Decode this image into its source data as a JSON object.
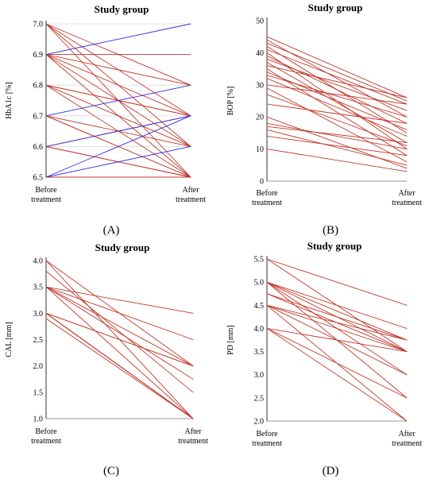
{
  "figure": {
    "panel_labels": [
      "(A)",
      "(B)",
      "(C)",
      "(D)"
    ]
  },
  "colors": {
    "red": "#c0392b",
    "blue": "#2e2ee0",
    "axis": "#333333",
    "grid": "#d9d9d9"
  },
  "chart_data": [
    {
      "type": "line",
      "panel": "(A)",
      "title": "Study group",
      "ylabel": "HbA1c [%]",
      "categories": [
        "Before treatment",
        "After treatment"
      ],
      "ylim": [
        6.5,
        7.0
      ],
      "yticks": [
        "6.5",
        "6.6",
        "6.7",
        "6.8",
        "6.9",
        "7.0"
      ],
      "ytick_values": [
        6.5,
        6.6,
        6.7,
        6.8,
        6.9,
        7.0
      ],
      "gridlines": true,
      "pairs": [
        {
          "before": 7.0,
          "after": 6.8,
          "color": "red"
        },
        {
          "before": 7.0,
          "after": 6.7,
          "color": "red"
        },
        {
          "before": 7.0,
          "after": 6.6,
          "color": "red"
        },
        {
          "before": 7.0,
          "after": 6.5,
          "color": "red"
        },
        {
          "before": 6.9,
          "after": 6.9,
          "color": "red"
        },
        {
          "before": 6.9,
          "after": 6.8,
          "color": "red"
        },
        {
          "before": 6.9,
          "after": 6.7,
          "color": "red"
        },
        {
          "before": 6.9,
          "after": 6.6,
          "color": "red"
        },
        {
          "before": 6.9,
          "after": 6.5,
          "color": "red"
        },
        {
          "before": 6.8,
          "after": 6.7,
          "color": "red"
        },
        {
          "before": 6.8,
          "after": 6.7,
          "color": "red"
        },
        {
          "before": 6.8,
          "after": 6.6,
          "color": "red"
        },
        {
          "before": 6.8,
          "after": 6.5,
          "color": "red"
        },
        {
          "before": 6.7,
          "after": 6.6,
          "color": "red"
        },
        {
          "before": 6.7,
          "after": 6.5,
          "color": "red"
        },
        {
          "before": 6.7,
          "after": 6.5,
          "color": "red"
        },
        {
          "before": 6.6,
          "after": 6.7,
          "color": "red"
        },
        {
          "before": 6.6,
          "after": 6.5,
          "color": "red"
        },
        {
          "before": 6.6,
          "after": 6.5,
          "color": "red"
        },
        {
          "before": 6.5,
          "after": 6.5,
          "color": "red"
        },
        {
          "before": 6.9,
          "after": 7.0,
          "color": "blue"
        },
        {
          "before": 6.7,
          "after": 6.8,
          "color": "blue"
        },
        {
          "before": 6.6,
          "after": 6.7,
          "color": "blue"
        },
        {
          "before": 6.5,
          "after": 6.7,
          "color": "blue"
        },
        {
          "before": 6.5,
          "after": 6.6,
          "color": "blue"
        }
      ]
    },
    {
      "type": "line",
      "panel": "(B)",
      "title": "Study group",
      "ylabel": "BOP [%]",
      "categories": [
        "Before treatment",
        "After treatment"
      ],
      "ylim": [
        0,
        50
      ],
      "yticks": [
        "0",
        "10",
        "20",
        "30",
        "40",
        "50"
      ],
      "ytick_values": [
        0,
        10,
        20,
        30,
        40,
        50
      ],
      "gridlines": false,
      "pairs": [
        {
          "before": 45,
          "after": 26,
          "color": "red"
        },
        {
          "before": 44,
          "after": 20,
          "color": "red"
        },
        {
          "before": 43,
          "after": 25,
          "color": "red"
        },
        {
          "before": 42,
          "after": 15,
          "color": "red"
        },
        {
          "before": 41,
          "after": 24,
          "color": "red"
        },
        {
          "before": 40,
          "after": 10,
          "color": "red"
        },
        {
          "before": 39,
          "after": 18,
          "color": "red"
        },
        {
          "before": 38,
          "after": 22,
          "color": "red"
        },
        {
          "before": 37,
          "after": 12,
          "color": "red"
        },
        {
          "before": 36,
          "after": 26,
          "color": "red"
        },
        {
          "before": 35,
          "after": 8,
          "color": "red"
        },
        {
          "before": 34,
          "after": 16,
          "color": "red"
        },
        {
          "before": 33,
          "after": 20,
          "color": "red"
        },
        {
          "before": 32,
          "after": 14,
          "color": "red"
        },
        {
          "before": 30,
          "after": 24,
          "color": "red"
        },
        {
          "before": 29,
          "after": 6,
          "color": "red"
        },
        {
          "before": 27,
          "after": 11,
          "color": "red"
        },
        {
          "before": 24,
          "after": 18,
          "color": "red"
        },
        {
          "before": 20,
          "after": 4,
          "color": "red"
        },
        {
          "before": 18,
          "after": 10,
          "color": "red"
        },
        {
          "before": 17,
          "after": 12,
          "color": "red"
        },
        {
          "before": 16,
          "after": 5,
          "color": "red"
        },
        {
          "before": 14,
          "after": 8,
          "color": "red"
        },
        {
          "before": 10,
          "after": 3,
          "color": "red"
        }
      ]
    },
    {
      "type": "line",
      "panel": "(C)",
      "title": "Study group",
      "ylabel": "CAL [mm]",
      "categories": [
        "Before treatment",
        "After treatment"
      ],
      "ylim": [
        1.0,
        4.0
      ],
      "yticks": [
        "1.0",
        "1.5",
        "2.0",
        "2.5",
        "3.0",
        "3.5",
        "4.0"
      ],
      "ytick_values": [
        1.0,
        1.5,
        2.0,
        2.5,
        3.0,
        3.5,
        4.0
      ],
      "gridlines": false,
      "pairs": [
        {
          "before": 4.0,
          "after": 2.0,
          "color": "red"
        },
        {
          "before": 4.0,
          "after": 1.0,
          "color": "red"
        },
        {
          "before": 3.8,
          "after": 1.5,
          "color": "red"
        },
        {
          "before": 3.5,
          "after": 3.0,
          "color": "red"
        },
        {
          "before": 3.5,
          "after": 2.5,
          "color": "red"
        },
        {
          "before": 3.5,
          "after": 2.0,
          "color": "red"
        },
        {
          "before": 3.5,
          "after": 1.0,
          "color": "red"
        },
        {
          "before": 3.5,
          "after": 1.75,
          "color": "red"
        },
        {
          "before": 3.0,
          "after": 2.0,
          "color": "red"
        },
        {
          "before": 3.0,
          "after": 2.0,
          "color": "red"
        },
        {
          "before": 3.0,
          "after": 1.0,
          "color": "red"
        },
        {
          "before": 3.0,
          "after": 1.0,
          "color": "red"
        },
        {
          "before": 3.0,
          "after": 1.0,
          "color": "red"
        },
        {
          "before": 3.0,
          "after": 1.0,
          "color": "red"
        },
        {
          "before": 2.9,
          "after": 1.0,
          "color": "red"
        }
      ]
    },
    {
      "type": "line",
      "panel": "(D)",
      "title": "Study group",
      "ylabel": "PD [mm]",
      "categories": [
        "Before treatment",
        "After treatment"
      ],
      "ylim": [
        2.0,
        5.5
      ],
      "yticks": [
        "2.0",
        "2.5",
        "3.0",
        "3.5",
        "4.0",
        "4.5",
        "5.0",
        "5.5"
      ],
      "ytick_values": [
        2.0,
        2.5,
        3.0,
        3.5,
        4.0,
        4.5,
        5.0,
        5.5
      ],
      "gridlines": false,
      "pairs": [
        {
          "before": 5.5,
          "after": 4.5,
          "color": "red"
        },
        {
          "before": 5.5,
          "after": 3.5,
          "color": "red"
        },
        {
          "before": 5.0,
          "after": 4.0,
          "color": "red"
        },
        {
          "before": 5.0,
          "after": 3.75,
          "color": "red"
        },
        {
          "before": 5.0,
          "after": 3.5,
          "color": "red"
        },
        {
          "before": 5.0,
          "after": 3.0,
          "color": "red"
        },
        {
          "before": 5.0,
          "after": 2.5,
          "color": "red"
        },
        {
          "before": 4.75,
          "after": 3.75,
          "color": "red"
        },
        {
          "before": 4.75,
          "after": 3.5,
          "color": "red"
        },
        {
          "before": 4.5,
          "after": 3.75,
          "color": "red"
        },
        {
          "before": 4.5,
          "after": 3.5,
          "color": "red"
        },
        {
          "before": 4.5,
          "after": 3.0,
          "color": "red"
        },
        {
          "before": 4.5,
          "after": 2.0,
          "color": "red"
        },
        {
          "before": 4.0,
          "after": 3.5,
          "color": "red"
        },
        {
          "before": 4.0,
          "after": 2.5,
          "color": "red"
        },
        {
          "before": 4.0,
          "after": 2.0,
          "color": "red"
        }
      ]
    }
  ]
}
